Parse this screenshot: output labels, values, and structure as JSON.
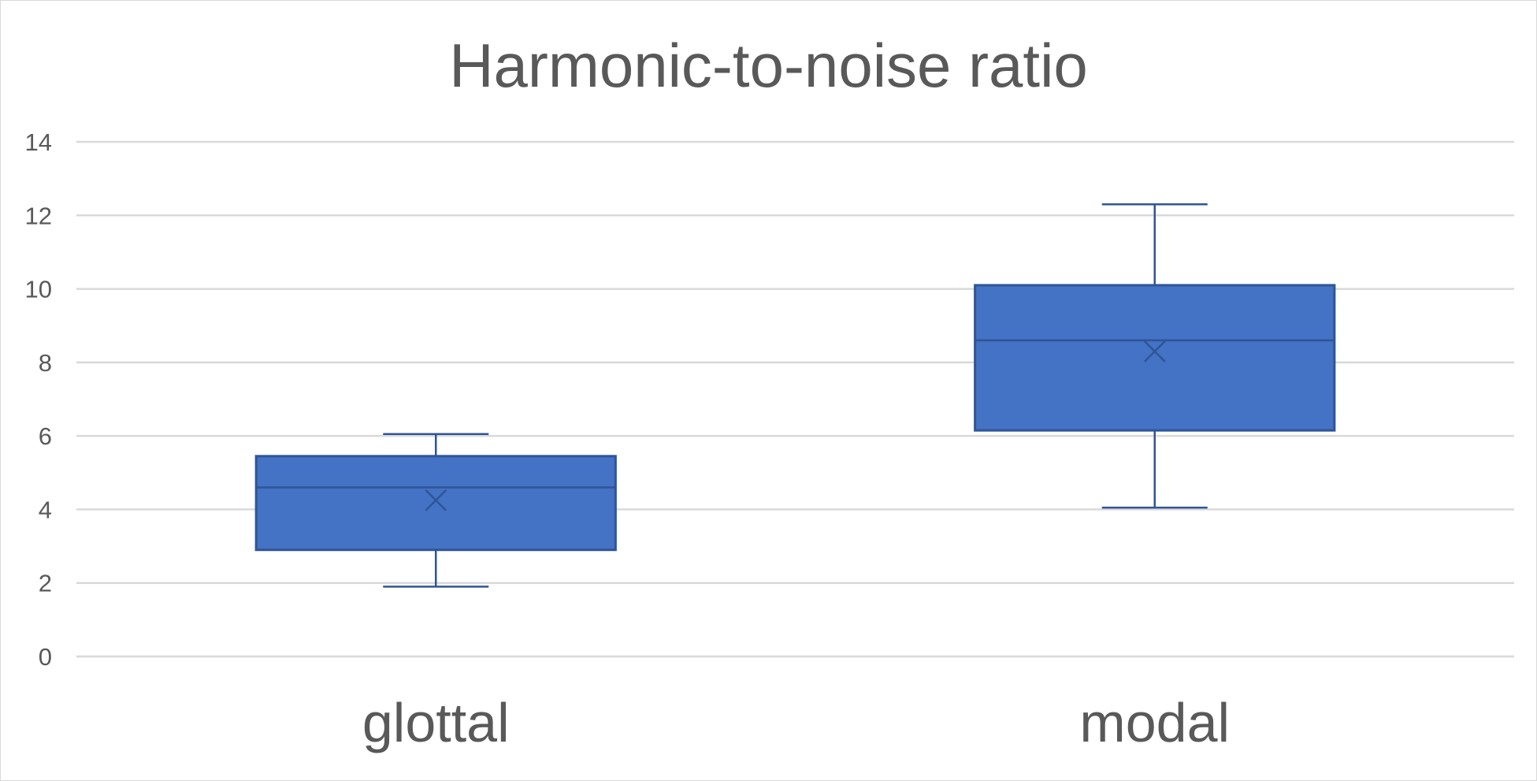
{
  "chart_data": {
    "type": "box",
    "title": "Harmonic-to-noise ratio",
    "xlabel": "",
    "ylabel": "",
    "ylim": [
      0,
      14
    ],
    "yticks": [
      "0",
      "2",
      "4",
      "6",
      "8",
      "10",
      "12",
      "14"
    ],
    "grid": true,
    "legend": "none",
    "box_color": "#4472C4",
    "line_color": "#2F5597",
    "categories": [
      "glottal",
      "modal"
    ],
    "boxes": [
      {
        "category": "glottal",
        "min": 1.9,
        "q1": 2.9,
        "median": 4.6,
        "q3": 5.45,
        "max": 6.05,
        "mean": 4.25
      },
      {
        "category": "modal",
        "min": 4.05,
        "q1": 6.15,
        "median": 8.6,
        "q3": 10.1,
        "max": 12.3,
        "mean": 8.3
      }
    ]
  }
}
